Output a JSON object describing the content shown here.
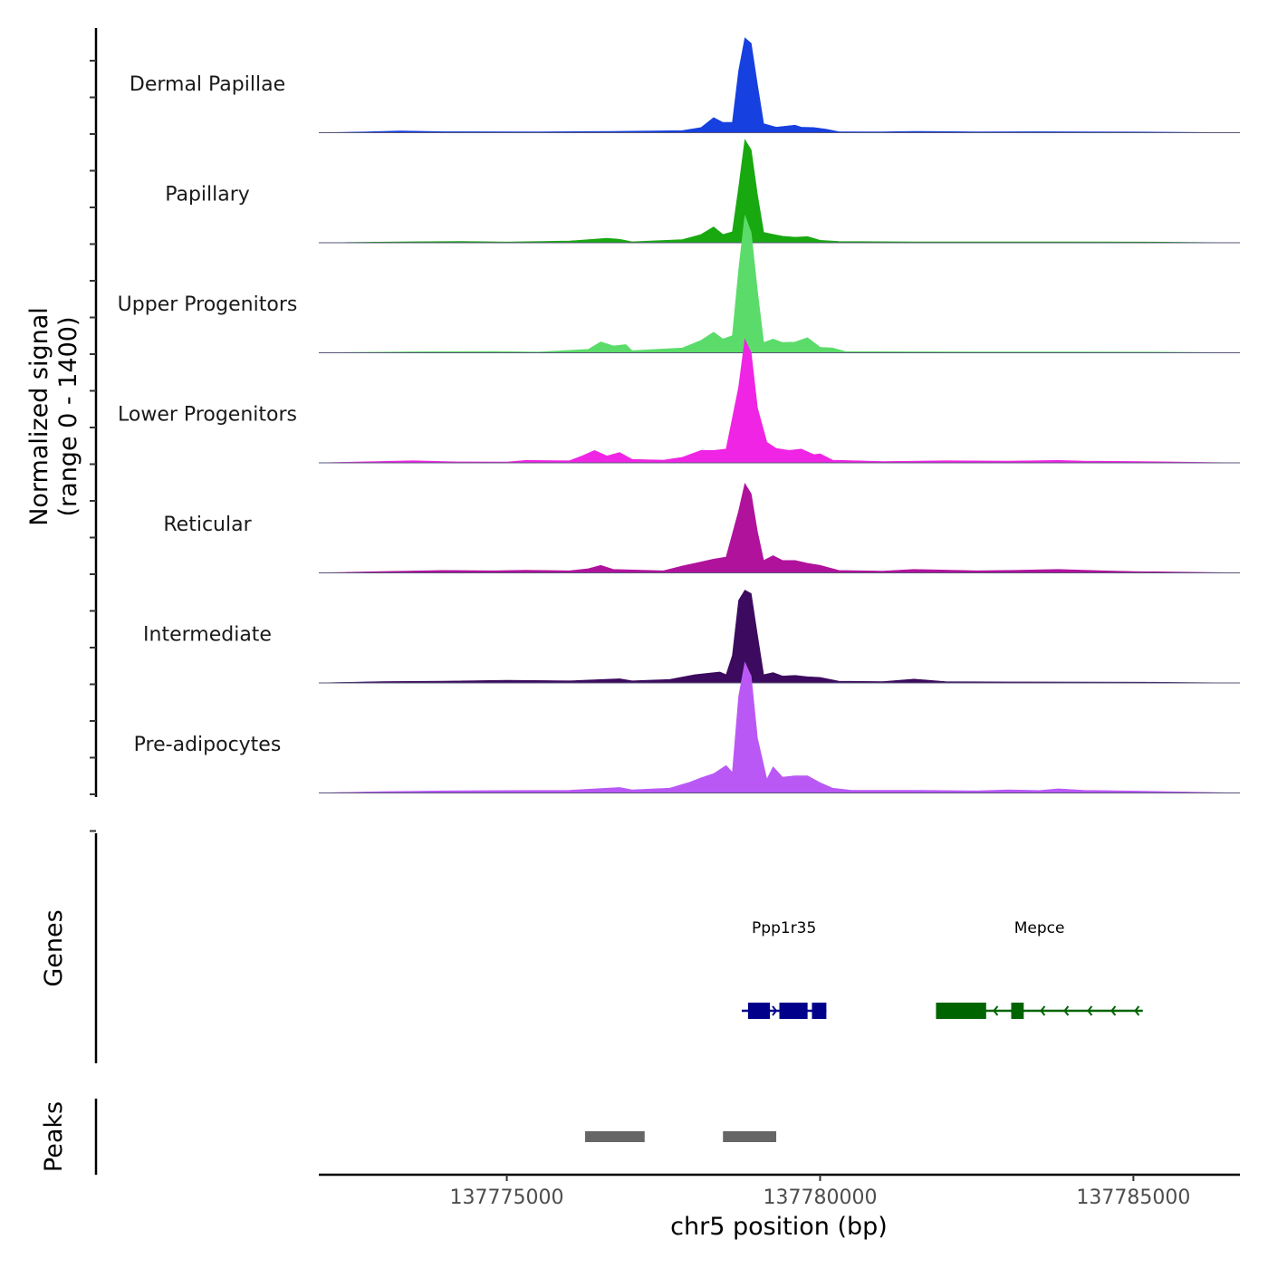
{
  "chart_data": {
    "type": "area",
    "title": "",
    "ylabel": "Normalized signal",
    "ylabel_range": "(range 0 - 1400)",
    "xlabel": "chr5 position (bp)",
    "chromosome": "chr5",
    "xlim": [
      137772000,
      137786700
    ],
    "ylim": [
      0,
      1400
    ],
    "x_ticks": [
      137775000,
      137780000,
      137785000
    ],
    "x_tick_labels": [
      "137775000",
      "137780000",
      "137785000"
    ],
    "grid": false,
    "tracks": [
      {
        "name": "Dermal Papillae",
        "color": "#1740E0",
        "points": [
          [
            137772000,
            0
          ],
          [
            137772700,
            10
          ],
          [
            137773300,
            25
          ],
          [
            137774000,
            15
          ],
          [
            137775500,
            12
          ],
          [
            137776700,
            18
          ],
          [
            137777800,
            30
          ],
          [
            137778100,
            75
          ],
          [
            137778300,
            220
          ],
          [
            137778450,
            150
          ],
          [
            137778600,
            150
          ],
          [
            137778700,
            900
          ],
          [
            137778800,
            1380
          ],
          [
            137778900,
            1300
          ],
          [
            137779000,
            700
          ],
          [
            137779100,
            130
          ],
          [
            137779300,
            80
          ],
          [
            137779600,
            110
          ],
          [
            137779700,
            80
          ],
          [
            137779900,
            75
          ],
          [
            137780100,
            50
          ],
          [
            137780300,
            15
          ],
          [
            137781000,
            12
          ],
          [
            137781500,
            20
          ],
          [
            137782500,
            12
          ],
          [
            137783500,
            15
          ],
          [
            137785000,
            10
          ],
          [
            137786700,
            0
          ]
        ]
      },
      {
        "name": "Papillary",
        "color": "#18A810",
        "points": [
          [
            137772000,
            0
          ],
          [
            137773500,
            15
          ],
          [
            137774300,
            20
          ],
          [
            137775000,
            10
          ],
          [
            137776000,
            25
          ],
          [
            137776600,
            65
          ],
          [
            137776800,
            50
          ],
          [
            137777000,
            15
          ],
          [
            137777800,
            45
          ],
          [
            137778100,
            120
          ],
          [
            137778300,
            230
          ],
          [
            137778450,
            120
          ],
          [
            137778600,
            160
          ],
          [
            137778700,
            800
          ],
          [
            137778800,
            1500
          ],
          [
            137778900,
            1350
          ],
          [
            137779000,
            700
          ],
          [
            137779100,
            150
          ],
          [
            137779200,
            130
          ],
          [
            137779400,
            95
          ],
          [
            137779600,
            80
          ],
          [
            137779800,
            90
          ],
          [
            137780000,
            35
          ],
          [
            137780300,
            18
          ],
          [
            137781500,
            12
          ],
          [
            137782500,
            12
          ],
          [
            137784000,
            12
          ],
          [
            137785200,
            10
          ],
          [
            137786700,
            0
          ]
        ]
      },
      {
        "name": "Upper Progenitors",
        "color": "#5BDC6A",
        "points": [
          [
            137772000,
            0
          ],
          [
            137773500,
            15
          ],
          [
            137774800,
            20
          ],
          [
            137775500,
            10
          ],
          [
            137776300,
            50
          ],
          [
            137776500,
            160
          ],
          [
            137776700,
            100
          ],
          [
            137776900,
            120
          ],
          [
            137777000,
            30
          ],
          [
            137777800,
            70
          ],
          [
            137778100,
            180
          ],
          [
            137778300,
            300
          ],
          [
            137778450,
            200
          ],
          [
            137778600,
            250
          ],
          [
            137778700,
            1200
          ],
          [
            137778800,
            2000
          ],
          [
            137778900,
            1750
          ],
          [
            137779000,
            900
          ],
          [
            137779100,
            150
          ],
          [
            137779250,
            200
          ],
          [
            137779400,
            150
          ],
          [
            137779600,
            155
          ],
          [
            137779800,
            220
          ],
          [
            137780000,
            80
          ],
          [
            137780200,
            70
          ],
          [
            137780400,
            20
          ],
          [
            137781500,
            15
          ],
          [
            137782500,
            12
          ],
          [
            137784000,
            12
          ],
          [
            137785300,
            10
          ],
          [
            137786700,
            0
          ]
        ]
      },
      {
        "name": "Lower Progenitors",
        "color": "#F024E4",
        "points": [
          [
            137772000,
            0
          ],
          [
            137772600,
            12
          ],
          [
            137773500,
            30
          ],
          [
            137774200,
            15
          ],
          [
            137775000,
            12
          ],
          [
            137775300,
            35
          ],
          [
            137776000,
            30
          ],
          [
            137776200,
            100
          ],
          [
            137776400,
            180
          ],
          [
            137776600,
            100
          ],
          [
            137776800,
            150
          ],
          [
            137777000,
            50
          ],
          [
            137777500,
            40
          ],
          [
            137777800,
            80
          ],
          [
            137778100,
            180
          ],
          [
            137778300,
            180
          ],
          [
            137778500,
            200
          ],
          [
            137778700,
            1100
          ],
          [
            137778800,
            1800
          ],
          [
            137778900,
            1600
          ],
          [
            137779000,
            800
          ],
          [
            137779150,
            300
          ],
          [
            137779300,
            210
          ],
          [
            137779500,
            180
          ],
          [
            137779700,
            200
          ],
          [
            137779900,
            120
          ],
          [
            137780000,
            130
          ],
          [
            137780200,
            40
          ],
          [
            137781000,
            20
          ],
          [
            137782000,
            30
          ],
          [
            137783000,
            25
          ],
          [
            137783800,
            35
          ],
          [
            137784200,
            25
          ],
          [
            137785100,
            20
          ],
          [
            137786700,
            0
          ]
        ]
      },
      {
        "name": "Reticular",
        "color": "#B0129C",
        "points": [
          [
            137772000,
            0
          ],
          [
            137773000,
            18
          ],
          [
            137774000,
            35
          ],
          [
            137774800,
            30
          ],
          [
            137775300,
            40
          ],
          [
            137776000,
            30
          ],
          [
            137776300,
            60
          ],
          [
            137776500,
            110
          ],
          [
            137776700,
            50
          ],
          [
            137777500,
            30
          ],
          [
            137777800,
            100
          ],
          [
            137778100,
            160
          ],
          [
            137778300,
            200
          ],
          [
            137778500,
            230
          ],
          [
            137778700,
            900
          ],
          [
            137778800,
            1300
          ],
          [
            137778900,
            1150
          ],
          [
            137779000,
            600
          ],
          [
            137779100,
            180
          ],
          [
            137779250,
            250
          ],
          [
            137779400,
            180
          ],
          [
            137779600,
            180
          ],
          [
            137779800,
            140
          ],
          [
            137780000,
            110
          ],
          [
            137780300,
            35
          ],
          [
            137781000,
            25
          ],
          [
            137781500,
            50
          ],
          [
            137782500,
            30
          ],
          [
            137783200,
            40
          ],
          [
            137783800,
            50
          ],
          [
            137784500,
            30
          ],
          [
            137785000,
            20
          ],
          [
            137786700,
            0
          ]
        ]
      },
      {
        "name": "Intermediate",
        "color": "#3C0A5E",
        "points": [
          [
            137772000,
            0
          ],
          [
            137773000,
            20
          ],
          [
            137774000,
            25
          ],
          [
            137775000,
            40
          ],
          [
            137776000,
            30
          ],
          [
            137776800,
            60
          ],
          [
            137777000,
            30
          ],
          [
            137777600,
            50
          ],
          [
            137778000,
            120
          ],
          [
            137778200,
            140
          ],
          [
            137778400,
            160
          ],
          [
            137778500,
            120
          ],
          [
            137778600,
            400
          ],
          [
            137778700,
            1200
          ],
          [
            137778800,
            1350
          ],
          [
            137778900,
            1300
          ],
          [
            137779000,
            700
          ],
          [
            137779100,
            120
          ],
          [
            137779250,
            150
          ],
          [
            137779400,
            100
          ],
          [
            137779600,
            110
          ],
          [
            137779800,
            90
          ],
          [
            137780000,
            80
          ],
          [
            137780300,
            25
          ],
          [
            137781000,
            20
          ],
          [
            137781500,
            55
          ],
          [
            137782000,
            20
          ],
          [
            137783000,
            15
          ],
          [
            137785200,
            10
          ],
          [
            137786700,
            0
          ]
        ]
      },
      {
        "name": "Pre-adipocytes",
        "color": "#BA58F6",
        "points": [
          [
            137772000,
            0
          ],
          [
            137773000,
            20
          ],
          [
            137774000,
            30
          ],
          [
            137775000,
            35
          ],
          [
            137776000,
            40
          ],
          [
            137776800,
            80
          ],
          [
            137777000,
            45
          ],
          [
            137777600,
            70
          ],
          [
            137777900,
            150
          ],
          [
            137778100,
            220
          ],
          [
            137778300,
            280
          ],
          [
            137778500,
            400
          ],
          [
            137778600,
            300
          ],
          [
            137778700,
            1400
          ],
          [
            137778800,
            1900
          ],
          [
            137778900,
            1700
          ],
          [
            137779000,
            800
          ],
          [
            137779150,
            200
          ],
          [
            137779250,
            380
          ],
          [
            137779400,
            230
          ],
          [
            137779600,
            250
          ],
          [
            137779800,
            250
          ],
          [
            137780000,
            150
          ],
          [
            137780200,
            70
          ],
          [
            137780500,
            40
          ],
          [
            137781500,
            40
          ],
          [
            137782500,
            30
          ],
          [
            137783000,
            45
          ],
          [
            137783500,
            35
          ],
          [
            137783800,
            60
          ],
          [
            137784200,
            40
          ],
          [
            137785200,
            25
          ],
          [
            137786700,
            0
          ]
        ]
      }
    ],
    "genes": [
      {
        "name": "Ppp1r35",
        "color": "#00008B",
        "strand": "+",
        "start": 137778750,
        "end": 137780100,
        "exons": [
          [
            137778850,
            137779200
          ],
          [
            137779350,
            137779800
          ],
          [
            137779870,
            137780100
          ]
        ]
      },
      {
        "name": "Mepce",
        "color": "#006400",
        "strand": "-",
        "start": 137781850,
        "end": 137785150,
        "exons": [
          [
            137781850,
            137782650
          ],
          [
            137783050,
            137783250
          ]
        ]
      }
    ],
    "peaks": [
      {
        "start": 137776250,
        "end": 137777200
      },
      {
        "start": 137778450,
        "end": 137779300
      }
    ],
    "side_labels": {
      "genes": "Genes",
      "peaks": "Peaks"
    }
  }
}
